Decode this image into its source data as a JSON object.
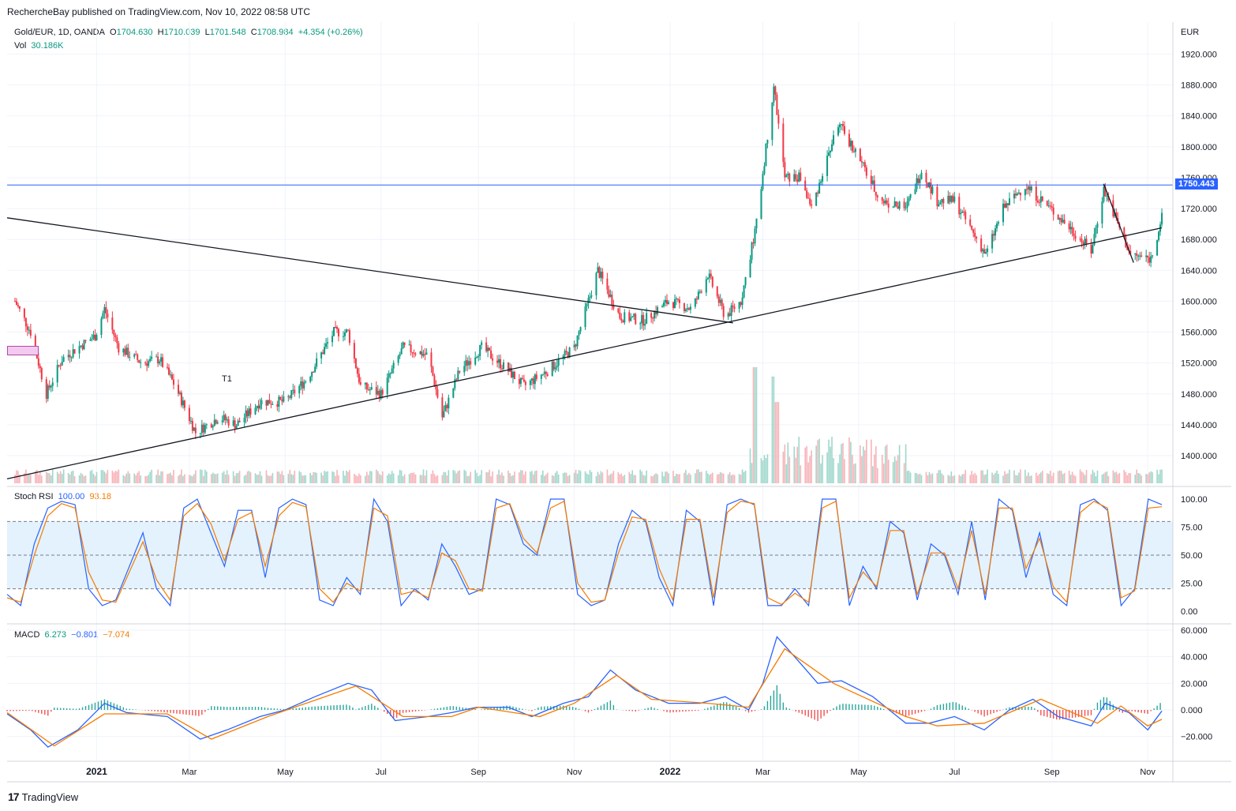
{
  "header": {
    "publisher": "RechercheBay published on TradingView.com, Nov 10, 2022 08:58 UTC"
  },
  "main_legend": {
    "symbol": "Gold/EUR, 1D, OANDA",
    "o_label": "O",
    "o": "1704.630",
    "h_label": "H",
    "h": "1710.039",
    "l_label": "L",
    "l": "1701.548",
    "c_label": "C",
    "c": "1708.984",
    "change": "+4.354 (+0.26%)",
    "vol_label": "Vol",
    "vol": "30.186K"
  },
  "stoch_legend": {
    "label": "Stoch RSI",
    "k": "100.00",
    "d": "93.18"
  },
  "macd_legend": {
    "label": "MACD",
    "hist": "6.273",
    "macd": "−0.801",
    "signal": "−7.074"
  },
  "currency": "EUR",
  "current_price": "1750.443",
  "annotation": "T1",
  "footer": {
    "brand": "TradingView",
    "logo_mark": "17"
  },
  "colors": {
    "up": "#089981",
    "down": "#f23645",
    "macd": "#2962ff",
    "signal": "#f57c00",
    "hline": "#2962ff",
    "band": "#e3f2fd"
  },
  "chart_data": [
    {
      "type": "candlestick",
      "title": "Gold/EUR, 1D, OANDA",
      "ylabel": "EUR",
      "ylim": [
        1365,
        1940
      ],
      "price_ticks": [
        "1920.000",
        "1880.000",
        "1840.000",
        "1800.000",
        "1760.000",
        "1720.000",
        "1680.000",
        "1640.000",
        "1600.000",
        "1560.000",
        "1520.000",
        "1480.000",
        "1440.000",
        "1400.000"
      ],
      "x_ticks": [
        "2021",
        "Mar",
        "May",
        "Jul",
        "Sep",
        "Nov",
        "2022",
        "Mar",
        "May",
        "Jul",
        "Sep",
        "Nov"
      ],
      "path": [
        [
          "2020-11-10",
          1600
        ],
        [
          "2020-11-20",
          1560
        ],
        [
          "2020-11-30",
          1480
        ],
        [
          "2020-12-10",
          1525
        ],
        [
          "2020-12-20",
          1540
        ],
        [
          "2020-12-31",
          1555
        ],
        [
          "2021-01-06",
          1590
        ],
        [
          "2021-01-15",
          1540
        ],
        [
          "2021-01-30",
          1520
        ],
        [
          "2021-02-10",
          1525
        ],
        [
          "2021-02-20",
          1490
        ],
        [
          "2021-03-05",
          1430
        ],
        [
          "2021-03-20",
          1450
        ],
        [
          "2021-03-31",
          1440
        ],
        [
          "2021-04-15",
          1470
        ],
        [
          "2021-05-01",
          1470
        ],
        [
          "2021-05-15",
          1500
        ],
        [
          "2021-06-01",
          1560
        ],
        [
          "2021-06-10",
          1560
        ],
        [
          "2021-06-18",
          1490
        ],
        [
          "2021-07-01",
          1480
        ],
        [
          "2021-07-15",
          1540
        ],
        [
          "2021-07-31",
          1530
        ],
        [
          "2021-08-09",
          1450
        ],
        [
          "2021-08-20",
          1510
        ],
        [
          "2021-09-03",
          1540
        ],
        [
          "2021-09-20",
          1510
        ],
        [
          "2021-09-30",
          1490
        ],
        [
          "2021-10-15",
          1510
        ],
        [
          "2021-11-01",
          1540
        ],
        [
          "2021-11-16",
          1640
        ],
        [
          "2021-11-30",
          1580
        ],
        [
          "2021-12-15",
          1575
        ],
        [
          "2021-12-31",
          1600
        ],
        [
          "2022-01-15",
          1590
        ],
        [
          "2022-01-25",
          1635
        ],
        [
          "2022-02-05",
          1580
        ],
        [
          "2022-02-15",
          1600
        ],
        [
          "2022-02-25",
          1700
        ],
        [
          "2022-03-08",
          1880
        ],
        [
          "2022-03-15",
          1760
        ],
        [
          "2022-03-25",
          1760
        ],
        [
          "2022-04-01",
          1720
        ],
        [
          "2022-04-18",
          1830
        ],
        [
          "2022-04-30",
          1790
        ],
        [
          "2022-05-15",
          1730
        ],
        [
          "2022-05-31",
          1720
        ],
        [
          "2022-06-10",
          1770
        ],
        [
          "2022-06-20",
          1730
        ],
        [
          "2022-07-01",
          1730
        ],
        [
          "2022-07-21",
          1660
        ],
        [
          "2022-08-01",
          1720
        ],
        [
          "2022-08-15",
          1750
        ],
        [
          "2022-08-31",
          1720
        ],
        [
          "2022-09-15",
          1690
        ],
        [
          "2022-09-26",
          1665
        ],
        [
          "2022-10-04",
          1745
        ],
        [
          "2022-10-21",
          1660
        ],
        [
          "2022-11-03",
          1655
        ],
        [
          "2022-11-10",
          1708.98
        ]
      ],
      "horizontal_line": 1750.443,
      "trendlines": [
        [
          [
            "2020-11-05",
            1708
          ],
          [
            "2022-02-10",
            1572
          ]
        ],
        [
          [
            "2020-11-05",
            1370
          ],
          [
            "2022-11-10",
            1695
          ]
        ],
        [
          [
            "2022-10-04",
            1752
          ],
          [
            "2022-10-23",
            1650
          ]
        ]
      ],
      "volume_spikes": [
        [
          "2022-02-24",
          1.0
        ],
        [
          "2022-03-07",
          0.92
        ],
        [
          "2022-03-10",
          0.7
        ]
      ]
    },
    {
      "type": "line",
      "title": "Stoch RSI",
      "ylim": [
        -5,
        105
      ],
      "y_ticks": [
        "100.00",
        "75.00",
        "50.00",
        "25.00",
        "0.00"
      ],
      "band": [
        20,
        80
      ],
      "series": [
        {
          "name": "K",
          "values": [
            15,
            5,
            60,
            92,
            98,
            95,
            20,
            5,
            10,
            40,
            70,
            20,
            5,
            92,
            100,
            70,
            40,
            90,
            90,
            30,
            92,
            100,
            95,
            10,
            5,
            30,
            15,
            100,
            80,
            5,
            20,
            10,
            60,
            40,
            15,
            20,
            100,
            95,
            60,
            50,
            100,
            100,
            15,
            5,
            10,
            60,
            90,
            80,
            30,
            5,
            90,
            80,
            5,
            95,
            100,
            95,
            5,
            5,
            20,
            5,
            100,
            100,
            5,
            40,
            20,
            80,
            70,
            10,
            60,
            50,
            15,
            80,
            10,
            100,
            90,
            30,
            70,
            15,
            5,
            95,
            100,
            90,
            5,
            20,
            100,
            95
          ],
          "x_start": "2020-11-05",
          "x_end": "2022-11-10"
        },
        {
          "name": "D",
          "values": [
            12,
            8,
            50,
            85,
            96,
            92,
            35,
            10,
            8,
            35,
            62,
            28,
            10,
            85,
            96,
            78,
            45,
            82,
            88,
            40,
            85,
            97,
            93,
            20,
            8,
            25,
            18,
            92,
            85,
            15,
            18,
            12,
            52,
            45,
            20,
            18,
            92,
            96,
            65,
            52,
            92,
            98,
            25,
            8,
            10,
            52,
            84,
            82,
            38,
            10,
            82,
            82,
            12,
            88,
            98,
            96,
            12,
            6,
            16,
            8,
            92,
            98,
            12,
            35,
            22,
            72,
            72,
            15,
            52,
            52,
            20,
            72,
            15,
            92,
            92,
            38,
            65,
            22,
            8,
            88,
            98,
            92,
            12,
            18,
            92,
            93.18
          ],
          "x_start": "2020-11-05",
          "x_end": "2022-11-10"
        }
      ]
    },
    {
      "type": "line",
      "title": "MACD",
      "ylim": [
        -33,
        62
      ],
      "y_ticks": [
        "60.000",
        "40.000",
        "20.000",
        "0.000",
        "−20.000"
      ],
      "series": [
        {
          "name": "MACD",
          "points": [
            [
              "2020-11-05",
              -3
            ],
            [
              "2020-11-20",
              -15
            ],
            [
              "2020-12-01",
              -28
            ],
            [
              "2020-12-20",
              -15
            ],
            [
              "2021-01-06",
              5
            ],
            [
              "2021-01-20",
              -2
            ],
            [
              "2021-02-15",
              -5
            ],
            [
              "2021-03-08",
              -22
            ],
            [
              "2021-03-25",
              -15
            ],
            [
              "2021-04-15",
              -5
            ],
            [
              "2021-05-01",
              0
            ],
            [
              "2021-05-20",
              10
            ],
            [
              "2021-06-10",
              20
            ],
            [
              "2021-06-25",
              15
            ],
            [
              "2021-07-10",
              -8
            ],
            [
              "2021-07-31",
              -5
            ],
            [
              "2021-08-15",
              -2
            ],
            [
              "2021-08-31",
              2
            ],
            [
              "2021-09-20",
              2
            ],
            [
              "2021-10-05",
              -5
            ],
            [
              "2021-10-25",
              5
            ],
            [
              "2021-11-10",
              10
            ],
            [
              "2021-11-24",
              30
            ],
            [
              "2021-12-10",
              15
            ],
            [
              "2021-12-31",
              5
            ],
            [
              "2022-01-20",
              5
            ],
            [
              "2022-02-05",
              10
            ],
            [
              "2022-02-20",
              0
            ],
            [
              "2022-03-01",
              20
            ],
            [
              "2022-03-10",
              55
            ],
            [
              "2022-03-25",
              35
            ],
            [
              "2022-04-05",
              20
            ],
            [
              "2022-04-20",
              22
            ],
            [
              "2022-05-10",
              10
            ],
            [
              "2022-05-31",
              -10
            ],
            [
              "2022-06-15",
              -10
            ],
            [
              "2022-07-01",
              -5
            ],
            [
              "2022-07-20",
              -15
            ],
            [
              "2022-08-05",
              0
            ],
            [
              "2022-08-20",
              8
            ],
            [
              "2022-09-05",
              -5
            ],
            [
              "2022-09-26",
              -12
            ],
            [
              "2022-10-05",
              5
            ],
            [
              "2022-10-20",
              -2
            ],
            [
              "2022-11-01",
              -15
            ],
            [
              "2022-11-10",
              -0.801
            ]
          ]
        },
        {
          "name": "Signal",
          "points": [
            [
              "2020-11-05",
              -2
            ],
            [
              "2020-12-05",
              -27
            ],
            [
              "2021-01-06",
              -3
            ],
            [
              "2021-02-15",
              -3
            ],
            [
              "2021-03-15",
              -22
            ],
            [
              "2021-04-20",
              -5
            ],
            [
              "2021-06-15",
              18
            ],
            [
              "2021-07-15",
              -5
            ],
            [
              "2021-08-15",
              -5
            ],
            [
              "2021-09-01",
              2
            ],
            [
              "2021-10-10",
              -5
            ],
            [
              "2021-11-01",
              5
            ],
            [
              "2021-11-28",
              26
            ],
            [
              "2021-12-20",
              8
            ],
            [
              "2022-01-25",
              5
            ],
            [
              "2022-02-20",
              2
            ],
            [
              "2022-03-15",
              46
            ],
            [
              "2022-04-15",
              20
            ],
            [
              "2022-05-31",
              -5
            ],
            [
              "2022-06-20",
              -12
            ],
            [
              "2022-07-20",
              -10
            ],
            [
              "2022-08-25",
              8
            ],
            [
              "2022-09-30",
              -10
            ],
            [
              "2022-10-15",
              3
            ],
            [
              "2022-11-01",
              -12
            ],
            [
              "2022-11-10",
              -7.074
            ]
          ]
        }
      ]
    }
  ]
}
